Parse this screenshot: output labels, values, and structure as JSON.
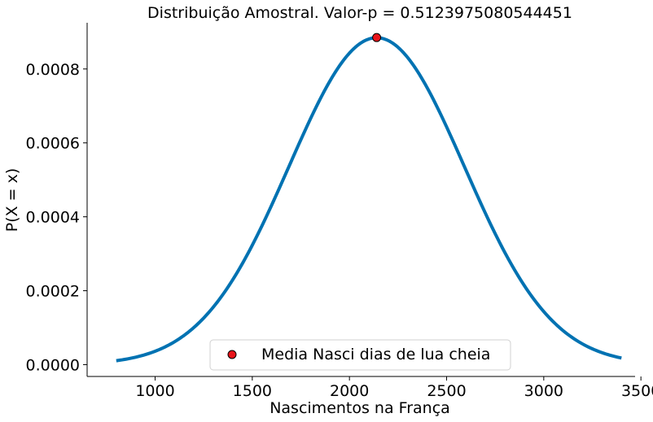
{
  "chart_data": {
    "type": "line",
    "title": "Distribuição Amostral. Valor-p = 0.5123975080544451",
    "xlabel": "Nascimentos na França",
    "ylabel": "P(X = x)",
    "xlim": [
      650,
      3470
    ],
    "ylim": [
      -3.2e-05,
      0.000925
    ],
    "x_ticks": [
      1000,
      1500,
      2000,
      2500,
      3000,
      3500
    ],
    "x_tick_labels": [
      "1000",
      "1500",
      "2000",
      "2500",
      "3000",
      "3500"
    ],
    "y_ticks": [
      0,
      0.0002,
      0.0004,
      0.0006,
      0.0008
    ],
    "y_tick_labels": [
      "0.0000",
      "0.0002",
      "0.0004",
      "0.0006",
      "0.0008"
    ],
    "grid": false,
    "legend_position": "lower-center",
    "series": [
      {
        "kind": "normal-pdf-curve",
        "mean": 2140,
        "std": 451,
        "x_range": [
          800,
          3400
        ],
        "color": "#0072b2"
      },
      {
        "kind": "scatter",
        "name": "Media Nasci dias de lua cheia",
        "x": 2140,
        "y": 0.000885,
        "color": "#e8141a",
        "edge_color": "#000000"
      }
    ]
  }
}
